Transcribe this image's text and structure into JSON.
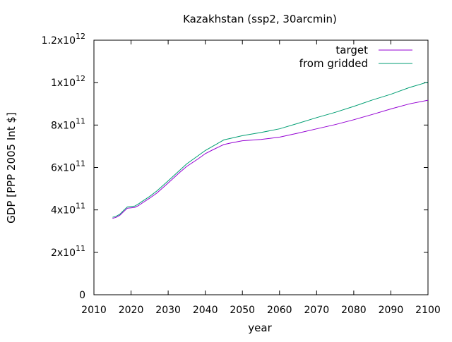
{
  "chart_data": {
    "type": "line",
    "title": "Kazakhstan (ssp2, 30arcmin)",
    "xlabel": "year",
    "ylabel": "GDP [PPP 2005 Int $]",
    "xlim": [
      2010,
      2100
    ],
    "ylim": [
      0,
      1200000000000
    ],
    "grid": false,
    "legend_position": "top-right",
    "x_ticks": [
      {
        "value": 2010,
        "label": "2010"
      },
      {
        "value": 2020,
        "label": "2020"
      },
      {
        "value": 2030,
        "label": "2030"
      },
      {
        "value": 2040,
        "label": "2040"
      },
      {
        "value": 2050,
        "label": "2050"
      },
      {
        "value": 2060,
        "label": "2060"
      },
      {
        "value": 2070,
        "label": "2070"
      },
      {
        "value": 2080,
        "label": "2080"
      },
      {
        "value": 2090,
        "label": "2090"
      },
      {
        "value": 2100,
        "label": "2100"
      }
    ],
    "y_ticks": [
      {
        "value": 0,
        "base": "0",
        "exp": ""
      },
      {
        "value": 200000000000,
        "base": "2x10",
        "exp": "11"
      },
      {
        "value": 400000000000,
        "base": "4x10",
        "exp": "11"
      },
      {
        "value": 600000000000,
        "base": "6x10",
        "exp": "11"
      },
      {
        "value": 800000000000,
        "base": "8x10",
        "exp": "11"
      },
      {
        "value": 1000000000000,
        "base": "1x10",
        "exp": "12"
      },
      {
        "value": 1200000000000,
        "base": "1.2x10",
        "exp": "12"
      }
    ],
    "x": [
      2015,
      2016,
      2017,
      2018,
      2019,
      2020,
      2021,
      2022,
      2023,
      2025,
      2027,
      2030,
      2033,
      2035,
      2038,
      2040,
      2042,
      2044,
      2045,
      2047,
      2050,
      2055,
      2060,
      2065,
      2070,
      2075,
      2080,
      2085,
      2090,
      2095,
      2100
    ],
    "series": [
      {
        "name": "target",
        "color": "#9400d3",
        "values": [
          360000000000,
          365000000000,
          375000000000,
          392000000000,
          408000000000,
          410000000000,
          412000000000,
          420000000000,
          432000000000,
          455000000000,
          480000000000,
          527000000000,
          575000000000,
          605000000000,
          640000000000,
          665000000000,
          683000000000,
          700000000000,
          708000000000,
          716000000000,
          726000000000,
          732000000000,
          743000000000,
          762000000000,
          782000000000,
          802000000000,
          825000000000,
          850000000000,
          876000000000,
          900000000000,
          917000000000
        ]
      },
      {
        "name": "from gridded",
        "color": "#009e73",
        "values": [
          365000000000,
          370000000000,
          380000000000,
          398000000000,
          414000000000,
          416000000000,
          418000000000,
          428000000000,
          440000000000,
          463000000000,
          490000000000,
          537000000000,
          585000000000,
          617000000000,
          655000000000,
          680000000000,
          700000000000,
          720000000000,
          730000000000,
          738000000000,
          750000000000,
          765000000000,
          782000000000,
          808000000000,
          835000000000,
          860000000000,
          888000000000,
          918000000000,
          945000000000,
          977000000000,
          1003000000000
        ]
      }
    ]
  }
}
